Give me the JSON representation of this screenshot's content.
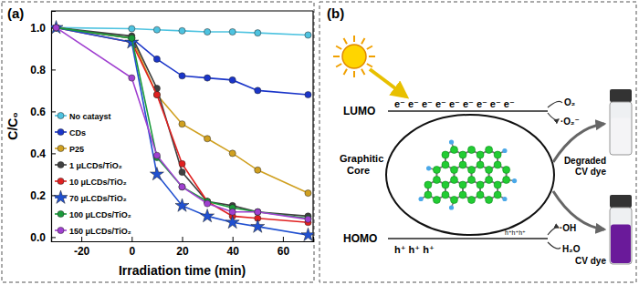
{
  "chart_data": {
    "type": "line",
    "title": "(a)",
    "x_label": "Irradiation time (min)",
    "y_label": "C/C₀",
    "x": [
      -30,
      0,
      10,
      20,
      30,
      40,
      50,
      70
    ],
    "xlim": [
      -32,
      72
    ],
    "xticks": [
      -20,
      0,
      20,
      40,
      60
    ],
    "ylim": [
      -0.02,
      1.08
    ],
    "yticks": [
      {
        "value": 0,
        "label": "0.0"
      },
      {
        "value": 0.2,
        "label": "0.2"
      },
      {
        "value": 0.4,
        "label": "0.4"
      },
      {
        "value": 0.6,
        "label": "0.6"
      },
      {
        "value": 0.8,
        "label": "0.8"
      },
      {
        "value": 1,
        "label": "1.0"
      }
    ],
    "grid": false,
    "legend": "lower left",
    "series": [
      {
        "name": "No catayst",
        "color": "#4ec3e0",
        "marker": "circle",
        "values": [
          1.0,
          0.995,
          0.99,
          0.985,
          0.98,
          0.98,
          0.975,
          0.965
        ]
      },
      {
        "name": "CDs",
        "color": "#1a35c9",
        "marker": "circle",
        "values": [
          1.0,
          0.95,
          0.85,
          0.77,
          0.76,
          0.75,
          0.7,
          0.68
        ]
      },
      {
        "name": "P25",
        "color": "#d0a020",
        "marker": "circle",
        "values": [
          1.0,
          0.95,
          0.68,
          0.54,
          0.47,
          0.4,
          0.32,
          0.21
        ]
      },
      {
        "name": "1 μLCDs/TiO₂",
        "color": "#404040",
        "marker": "circle",
        "values": [
          1.0,
          0.96,
          0.71,
          0.31,
          0.17,
          0.15,
          0.12,
          0.1
        ]
      },
      {
        "name": "10 μLCDs/TiO₂",
        "color": "#e02020",
        "marker": "circle",
        "values": [
          1.0,
          0.93,
          0.68,
          0.35,
          0.17,
          0.1,
          0.09,
          0.07
        ]
      },
      {
        "name": "70 μLCDs/TiO₂",
        "color": "#2050d0",
        "marker": "star",
        "values": [
          1.0,
          0.93,
          0.3,
          0.15,
          0.1,
          0.07,
          0.05,
          0.01
        ]
      },
      {
        "name": "100 μLCDs/TiO₂",
        "color": "#1a9a3a",
        "marker": "circle",
        "values": [
          1.0,
          0.95,
          0.38,
          0.24,
          0.17,
          0.14,
          0.12,
          0.09
        ]
      },
      {
        "name": "150 μLCDs/TiO₂",
        "color": "#a040d0",
        "marker": "circle",
        "values": [
          1.0,
          0.76,
          0.39,
          0.24,
          0.16,
          0.12,
          0.12,
          0.085
        ]
      }
    ]
  },
  "diagram": {
    "label": "(b)",
    "lumo": "LUMO",
    "homo": "HOMO",
    "core": [
      "Graphitic",
      "Core"
    ],
    "electrons": "e⁻ e⁻ e⁻ e⁻ e⁻ e⁻ e⁻ e⁻ e⁻",
    "holes": "h⁺ h⁺ h⁺",
    "holes_small": "h⁺h⁺h⁺",
    "oxygen": "O₂",
    "superoxide": "·O₂⁻",
    "hydroxyl": "·OH",
    "water": "H₂O",
    "degraded": [
      "Degraded",
      "CV dye"
    ],
    "dye": "CV dye"
  }
}
